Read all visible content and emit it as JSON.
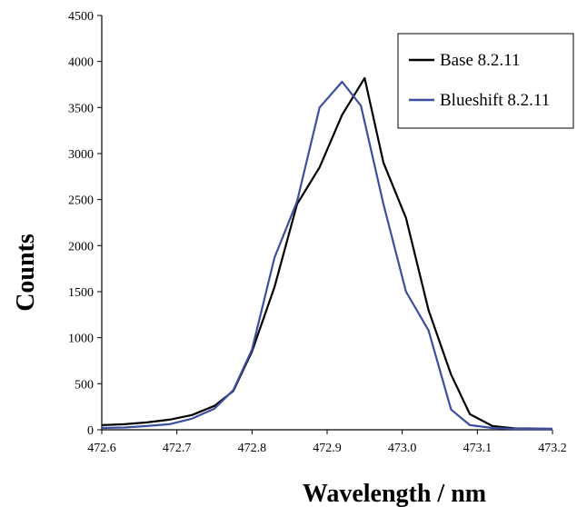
{
  "chart_data": {
    "type": "line",
    "xlabel": "Wavelength / nm",
    "ylabel": "Counts",
    "xlim": [
      472.6,
      473.2
    ],
    "ylim": [
      0,
      4500
    ],
    "xticks": [
      "472.6",
      "472.7",
      "472.8",
      "472.9",
      "473.0",
      "473.1",
      "473.2"
    ],
    "yticks": [
      "0",
      "500",
      "1000",
      "1500",
      "2000",
      "2500",
      "3000",
      "3500",
      "4000",
      "4500"
    ],
    "grid": false,
    "legend_position": "top-right",
    "series": [
      {
        "name": "Base 8.2.11",
        "color": "#000000",
        "x": [
          472.6,
          472.63,
          472.66,
          472.69,
          472.72,
          472.75,
          472.775,
          472.8,
          472.83,
          472.86,
          472.89,
          472.92,
          472.95,
          472.975,
          473.005,
          473.035,
          473.065,
          473.09,
          473.12,
          473.15,
          473.2
        ],
        "y": [
          50,
          60,
          80,
          110,
          160,
          260,
          420,
          850,
          1550,
          2450,
          2850,
          3420,
          3820,
          2900,
          2300,
          1300,
          600,
          170,
          40,
          15,
          10
        ]
      },
      {
        "name": "Blueshift 8.2.11",
        "color": "#3b4fa0",
        "x": [
          472.6,
          472.63,
          472.66,
          472.69,
          472.72,
          472.75,
          472.775,
          472.8,
          472.83,
          472.86,
          472.89,
          472.92,
          472.945,
          472.975,
          473.005,
          473.035,
          473.065,
          473.09,
          473.12,
          473.15,
          473.2
        ],
        "y": [
          20,
          25,
          40,
          60,
          120,
          230,
          430,
          870,
          1870,
          2480,
          3500,
          3780,
          3520,
          2450,
          1500,
          1080,
          220,
          50,
          20,
          10,
          10
        ]
      }
    ]
  }
}
